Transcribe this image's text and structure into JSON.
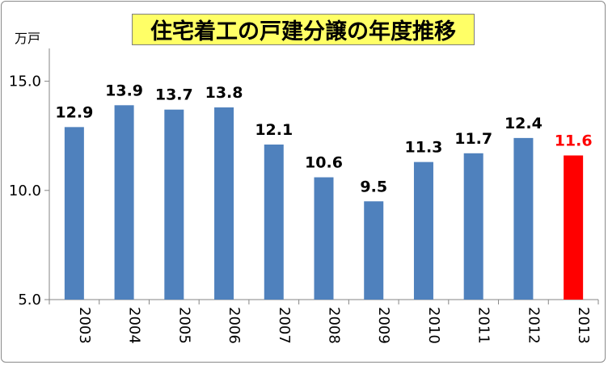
{
  "chart_data": {
    "type": "bar",
    "title": "住宅着工の戸建分譲の年度推移",
    "ylabel": "万戸",
    "xlabel": "",
    "categories": [
      "2003",
      "2004",
      "2005",
      "2006",
      "2007",
      "2008",
      "2009",
      "2010",
      "2011",
      "2012",
      "2013"
    ],
    "values": [
      12.9,
      13.9,
      13.7,
      13.8,
      12.1,
      10.6,
      9.5,
      11.3,
      11.7,
      12.4,
      11.6
    ],
    "value_labels": [
      "12.9",
      "13.9",
      "13.7",
      "13.8",
      "12.1",
      "10.6",
      "9.5",
      "11.3",
      "11.7",
      "12.4",
      "11.6"
    ],
    "yticks": [
      "5.0",
      "10.0",
      "15.0"
    ],
    "ytick_values": [
      5,
      10,
      15
    ],
    "ylim": [
      5,
      16.5
    ],
    "grid": false,
    "legend": "none",
    "colors": {
      "bar": "#4f81bd",
      "highlight_bar": "#ff0000",
      "highlight_label": "#ff0000",
      "label": "#000000",
      "title_background": "#ffff66"
    },
    "highlight_index": 10
  }
}
